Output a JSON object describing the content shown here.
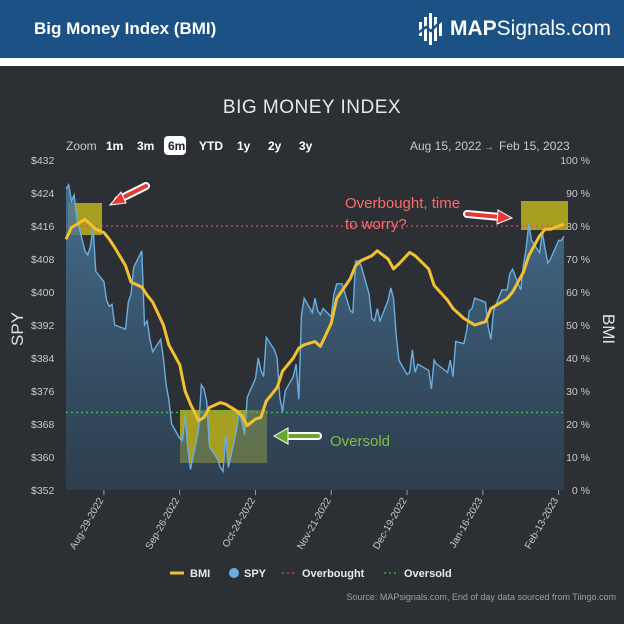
{
  "header": {
    "title": "Big Money Index (BMI)",
    "brand_bold": "MAP",
    "brand_rest": "Signals.com"
  },
  "zoom": {
    "label": "Zoom",
    "options": [
      "1m",
      "3m",
      "6m",
      "YTD",
      "1y",
      "2y",
      "3y"
    ],
    "selected": "6m"
  },
  "range": {
    "from": "Aug 15, 2022",
    "arrow": "→",
    "to": "Feb 15, 2023"
  },
  "annotations": {
    "overbought": [
      "Overbought, time",
      "to worry?"
    ],
    "oversold": "Oversold"
  },
  "source": "Source: MAPsignals.com, End of day data sourced from Tiingo.com",
  "colors": {
    "panel": "#2c3035",
    "bmi_line": "#f2c12e",
    "spy_line": "#6aaee0",
    "spy_fill": "#3b6485",
    "overbought_line": "#e0476e",
    "oversold_line": "#3fbf4f",
    "highlight_box": "#bdb31e",
    "red_arrow": "#e53935",
    "green_arrow": "#6aa62e",
    "header_bg": "#1b5185"
  },
  "chart_data": {
    "type": "line",
    "title": "BIG MONEY INDEX",
    "ylabel_left": "SPY",
    "ylabel_right": "BMI",
    "ylim_left": [
      352,
      432
    ],
    "ylim_right": [
      0,
      100
    ],
    "yticks_left": [
      "$352",
      "$360",
      "$368",
      "$376",
      "$384",
      "$392",
      "$400",
      "$408",
      "$416",
      "$424",
      "$432"
    ],
    "yticks_right": [
      "0 %",
      "10 %",
      "20 %",
      "30 %",
      "40 %",
      "50 %",
      "60 %",
      "70 %",
      "80 %",
      "90 %",
      "100 %"
    ],
    "xlim": [
      "2022-08-15",
      "2023-02-15"
    ],
    "x_ticks": [
      "Aug-29-2022",
      "Sep-26-2022",
      "Oct-24-2022",
      "Nov-21-2022",
      "Dec-19-2022",
      "Jan-16-2023",
      "Feb-13-2023"
    ],
    "grid": false,
    "legend_position": "bottom",
    "legend": [
      "BMI",
      "SPY",
      "Overbought",
      "Oversold"
    ],
    "reference_lines": {
      "overbought": 80,
      "oversold": 23.5
    },
    "series": [
      {
        "name": "SPY",
        "axis": "left",
        "points": [
          [
            "2022-08-15",
            425.0
          ],
          [
            "2022-08-16",
            426.0
          ],
          [
            "2022-08-17",
            422.0
          ],
          [
            "2022-08-18",
            423.5
          ],
          [
            "2022-08-19",
            418.0
          ],
          [
            "2022-08-22",
            410.0
          ],
          [
            "2022-08-23",
            409.0
          ],
          [
            "2022-08-24",
            411.0
          ],
          [
            "2022-08-25",
            415.5
          ],
          [
            "2022-08-26",
            405.0
          ],
          [
            "2022-08-29",
            402.5
          ],
          [
            "2022-08-30",
            398.0
          ],
          [
            "2022-08-31",
            396.5
          ],
          [
            "2022-09-01",
            397.0
          ],
          [
            "2022-09-02",
            392.0
          ],
          [
            "2022-09-06",
            391.0
          ],
          [
            "2022-09-07",
            397.5
          ],
          [
            "2022-09-08",
            399.5
          ],
          [
            "2022-09-09",
            406.0
          ],
          [
            "2022-09-12",
            410.0
          ],
          [
            "2022-09-13",
            392.0
          ],
          [
            "2022-09-14",
            393.0
          ],
          [
            "2022-09-15",
            388.5
          ],
          [
            "2022-09-16",
            385.5
          ],
          [
            "2022-09-19",
            388.5
          ],
          [
            "2022-09-20",
            384.0
          ],
          [
            "2022-09-21",
            377.5
          ],
          [
            "2022-09-22",
            374.0
          ],
          [
            "2022-09-23",
            368.0
          ],
          [
            "2022-09-26",
            364.5
          ],
          [
            "2022-09-27",
            364.0
          ],
          [
            "2022-09-28",
            370.0
          ],
          [
            "2022-09-29",
            362.0
          ],
          [
            "2022-09-30",
            357.0
          ],
          [
            "2022-10-03",
            366.5
          ],
          [
            "2022-10-04",
            377.5
          ],
          [
            "2022-10-05",
            376.5
          ],
          [
            "2022-10-06",
            373.5
          ],
          [
            "2022-10-07",
            362.5
          ],
          [
            "2022-10-10",
            359.5
          ],
          [
            "2022-10-11",
            357.5
          ],
          [
            "2022-10-12",
            356.5
          ],
          [
            "2022-10-13",
            365.5
          ],
          [
            "2022-10-14",
            357.5
          ],
          [
            "2022-10-17",
            366.5
          ],
          [
            "2022-10-18",
            371.0
          ],
          [
            "2022-10-19",
            368.5
          ],
          [
            "2022-10-20",
            365.5
          ],
          [
            "2022-10-21",
            374.5
          ],
          [
            "2022-10-24",
            379.0
          ],
          [
            "2022-10-25",
            384.0
          ],
          [
            "2022-10-26",
            381.0
          ],
          [
            "2022-10-27",
            379.5
          ],
          [
            "2022-10-28",
            389.0
          ],
          [
            "2022-10-31",
            386.0
          ],
          [
            "2022-11-01",
            384.0
          ],
          [
            "2022-11-02",
            374.5
          ],
          [
            "2022-11-03",
            371.0
          ],
          [
            "2022-11-04",
            376.0
          ],
          [
            "2022-11-07",
            379.5
          ],
          [
            "2022-11-08",
            382.5
          ],
          [
            "2022-11-09",
            374.0
          ],
          [
            "2022-11-10",
            394.5
          ],
          [
            "2022-11-11",
            398.5
          ],
          [
            "2022-11-14",
            395.0
          ],
          [
            "2022-11-15",
            398.5
          ],
          [
            "2022-11-16",
            395.5
          ],
          [
            "2022-11-17",
            394.5
          ],
          [
            "2022-11-18",
            396.0
          ],
          [
            "2022-11-21",
            394.0
          ],
          [
            "2022-11-22",
            399.5
          ],
          [
            "2022-11-23",
            402.0
          ],
          [
            "2022-11-25",
            402.0
          ],
          [
            "2022-11-28",
            395.5
          ],
          [
            "2022-11-29",
            395.0
          ],
          [
            "2022-11-30",
            407.5
          ],
          [
            "2022-12-01",
            407.5
          ],
          [
            "2022-12-02",
            406.5
          ],
          [
            "2022-12-05",
            399.5
          ],
          [
            "2022-12-06",
            393.5
          ],
          [
            "2022-12-07",
            393.0
          ],
          [
            "2022-12-08",
            396.0
          ],
          [
            "2022-12-09",
            393.0
          ],
          [
            "2022-12-12",
            398.0
          ],
          [
            "2022-12-13",
            401.0
          ],
          [
            "2022-12-14",
            398.5
          ],
          [
            "2022-12-15",
            389.5
          ],
          [
            "2022-12-16",
            383.5
          ],
          [
            "2022-12-19",
            380.0
          ],
          [
            "2022-12-20",
            380.5
          ],
          [
            "2022-12-21",
            386.0
          ],
          [
            "2022-12-22",
            380.5
          ],
          [
            "2022-12-23",
            382.5
          ],
          [
            "2022-12-27",
            381.0
          ],
          [
            "2022-12-28",
            376.5
          ],
          [
            "2022-12-29",
            383.5
          ],
          [
            "2022-12-30",
            382.5
          ],
          [
            "2023-01-03",
            380.5
          ],
          [
            "2023-01-04",
            383.5
          ],
          [
            "2023-01-05",
            379.5
          ],
          [
            "2023-01-06",
            388.0
          ],
          [
            "2023-01-09",
            387.5
          ],
          [
            "2023-01-10",
            390.5
          ],
          [
            "2023-01-11",
            395.5
          ],
          [
            "2023-01-12",
            396.0
          ],
          [
            "2023-01-13",
            398.5
          ],
          [
            "2023-01-17",
            397.5
          ],
          [
            "2023-01-18",
            391.5
          ],
          [
            "2023-01-19",
            388.5
          ],
          [
            "2023-01-20",
            395.5
          ],
          [
            "2023-01-23",
            400.5
          ],
          [
            "2023-01-24",
            400.5
          ],
          [
            "2023-01-25",
            400.5
          ],
          [
            "2023-01-26",
            404.5
          ],
          [
            "2023-01-27",
            405.5
          ],
          [
            "2023-01-30",
            400.5
          ],
          [
            "2023-01-31",
            406.5
          ],
          [
            "2023-02-01",
            410.5
          ],
          [
            "2023-02-02",
            416.5
          ],
          [
            "2023-02-03",
            412.5
          ],
          [
            "2023-02-06",
            409.5
          ],
          [
            "2023-02-07",
            414.5
          ],
          [
            "2023-02-08",
            410.5
          ],
          [
            "2023-02-09",
            407.0
          ],
          [
            "2023-02-10",
            408.0
          ],
          [
            "2023-02-13",
            412.5
          ],
          [
            "2023-02-14",
            412.5
          ],
          [
            "2023-02-15",
            413.5
          ]
        ]
      },
      {
        "name": "BMI",
        "axis": "right",
        "points": [
          [
            "2022-08-15",
            76.0
          ],
          [
            "2022-08-17",
            79.5
          ],
          [
            "2022-08-19",
            80.5
          ],
          [
            "2022-08-22",
            82.0
          ],
          [
            "2022-08-24",
            80.5
          ],
          [
            "2022-08-26",
            79.0
          ],
          [
            "2022-08-29",
            78.0
          ],
          [
            "2022-08-31",
            76.0
          ],
          [
            "2022-09-02",
            73.5
          ],
          [
            "2022-09-06",
            68.0
          ],
          [
            "2022-09-08",
            63.0
          ],
          [
            "2022-09-12",
            61.5
          ],
          [
            "2022-09-14",
            59.0
          ],
          [
            "2022-09-16",
            57.0
          ],
          [
            "2022-09-20",
            50.0
          ],
          [
            "2022-09-22",
            44.0
          ],
          [
            "2022-09-26",
            38.0
          ],
          [
            "2022-09-28",
            30.0
          ],
          [
            "2022-09-30",
            26.0
          ],
          [
            "2022-10-03",
            21.0
          ],
          [
            "2022-10-05",
            22.0
          ],
          [
            "2022-10-07",
            25.0
          ],
          [
            "2022-10-11",
            26.5
          ],
          [
            "2022-10-13",
            26.0
          ],
          [
            "2022-10-17",
            24.0
          ],
          [
            "2022-10-19",
            22.5
          ],
          [
            "2022-10-21",
            19.5
          ],
          [
            "2022-10-24",
            21.5
          ],
          [
            "2022-10-26",
            22.0
          ],
          [
            "2022-10-28",
            27.0
          ],
          [
            "2022-11-01",
            31.0
          ],
          [
            "2022-11-03",
            36.0
          ],
          [
            "2022-11-07",
            40.0
          ],
          [
            "2022-11-09",
            43.0
          ],
          [
            "2022-11-11",
            44.0
          ],
          [
            "2022-11-15",
            45.0
          ],
          [
            "2022-11-17",
            43.5
          ],
          [
            "2022-11-21",
            50.5
          ],
          [
            "2022-11-23",
            58.0
          ],
          [
            "2022-11-28",
            64.0
          ],
          [
            "2022-11-30",
            68.0
          ],
          [
            "2022-12-02",
            69.5
          ],
          [
            "2022-12-06",
            71.0
          ],
          [
            "2022-12-08",
            72.5
          ],
          [
            "2022-12-12",
            70.0
          ],
          [
            "2022-12-14",
            67.0
          ],
          [
            "2022-12-16",
            68.5
          ],
          [
            "2022-12-20",
            72.0
          ],
          [
            "2022-12-22",
            71.0
          ],
          [
            "2022-12-27",
            67.0
          ],
          [
            "2022-12-29",
            62.0
          ],
          [
            "2023-01-03",
            57.5
          ],
          [
            "2023-01-05",
            55.0
          ],
          [
            "2023-01-09",
            52.0
          ],
          [
            "2023-01-11",
            51.0
          ],
          [
            "2023-01-13",
            50.0
          ],
          [
            "2023-01-17",
            51.0
          ],
          [
            "2023-01-19",
            55.0
          ],
          [
            "2023-01-23",
            57.0
          ],
          [
            "2023-01-25",
            58.0
          ],
          [
            "2023-01-27",
            60.0
          ],
          [
            "2023-01-31",
            66.0
          ],
          [
            "2023-02-02",
            71.0
          ],
          [
            "2023-02-06",
            77.0
          ],
          [
            "2023-02-08",
            79.0
          ],
          [
            "2023-02-10",
            79.0
          ],
          [
            "2023-02-13",
            80.0
          ],
          [
            "2023-02-15",
            80.5
          ]
        ]
      }
    ]
  }
}
